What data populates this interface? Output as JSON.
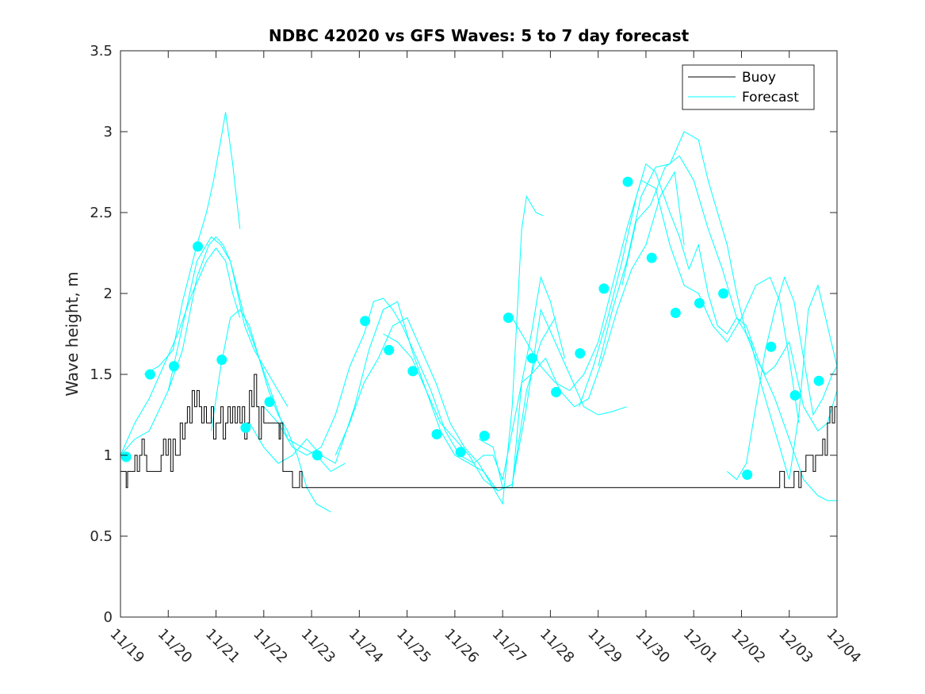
{
  "chart_data": {
    "type": "line",
    "title": "NDBC 42020 vs GFS Waves: 5 to 7 day forecast",
    "xlabel": "",
    "ylabel": "Wave height, m",
    "xlim": [
      0,
      15
    ],
    "ylim": [
      0,
      3.5
    ],
    "x_ticks": [
      0,
      1,
      2,
      3,
      4,
      5,
      6,
      7,
      8,
      9,
      10,
      11,
      12,
      13,
      14,
      15
    ],
    "x_tick_labels": [
      "11/19",
      "11/20",
      "11/21",
      "11/22",
      "11/23",
      "11/24",
      "11/25",
      "11/26",
      "11/27",
      "11/28",
      "11/29",
      "11/30",
      "12/01",
      "12/02",
      "12/03",
      "12/04"
    ],
    "y_ticks": [
      0,
      0.5,
      1,
      1.5,
      2,
      2.5,
      3,
      3.5
    ],
    "y_tick_labels": [
      "0",
      "0.5",
      "1",
      "1.5",
      "2",
      "2.5",
      "3",
      "3.5"
    ],
    "legend": {
      "position": "top-right",
      "entries": [
        {
          "label": "Buoy",
          "color": "#000000"
        },
        {
          "label": "Forecast",
          "color": "#00ffff"
        }
      ]
    },
    "colors": {
      "buoy": "#000000",
      "forecast": "#00ffff"
    },
    "series": [
      {
        "name": "Buoy",
        "x": [
          0,
          0.08,
          0.12,
          0.15,
          0.2,
          0.3,
          0.35,
          0.4,
          0.42,
          0.45,
          0.5,
          0.55,
          0.6,
          0.8,
          0.85,
          0.9,
          0.95,
          1.0,
          1.05,
          1.1,
          1.15,
          1.25,
          1.3,
          1.35,
          1.4,
          1.45,
          1.5,
          1.55,
          1.6,
          1.65,
          1.7,
          1.75,
          1.8,
          1.85,
          1.9,
          1.95,
          2.0,
          2.05,
          2.1,
          2.15,
          2.2,
          2.25,
          2.3,
          2.35,
          2.4,
          2.45,
          2.5,
          2.55,
          2.6,
          2.65,
          2.7,
          2.75,
          2.8,
          2.85,
          2.9,
          2.95,
          3.0,
          3.1,
          3.2,
          3.3,
          3.32,
          3.35,
          3.4,
          3.5,
          3.6,
          3.7,
          3.72,
          3.75,
          3.8,
          13.8,
          13.85,
          13.9,
          14.0,
          14.1,
          14.2,
          14.25,
          14.3,
          14.35,
          14.4,
          14.5,
          14.55,
          14.6,
          14.65,
          14.7,
          14.75,
          14.8,
          14.85,
          14.9,
          14.95,
          15.0
        ],
        "y": [
          0.9,
          0.9,
          0.8,
          0.9,
          0.9,
          1.0,
          0.9,
          1.0,
          1.0,
          1.1,
          1.0,
          0.9,
          0.9,
          0.9,
          1.0,
          1.1,
          1.0,
          1.1,
          0.9,
          1.1,
          1.0,
          1.2,
          1.1,
          1.2,
          1.3,
          1.2,
          1.4,
          1.3,
          1.4,
          1.3,
          1.2,
          1.3,
          1.2,
          1.2,
          1.3,
          1.1,
          1.2,
          1.2,
          1.3,
          1.1,
          1.2,
          1.3,
          1.2,
          1.3,
          1.2,
          1.3,
          1.2,
          1.3,
          1.1,
          1.2,
          1.4,
          1.3,
          1.5,
          1.3,
          1.1,
          1.3,
          1.2,
          1.2,
          1.2,
          1.2,
          1.1,
          1.2,
          0.9,
          0.9,
          0.8,
          0.8,
          0.8,
          0.9,
          0.8,
          0.9,
          0.9,
          0.8,
          0.8,
          0.9,
          0.8,
          0.9,
          0.9,
          1.0,
          1.0,
          0.9,
          1.0,
          1.0,
          1.0,
          1.1,
          1.0,
          1.2,
          1.3,
          1.2,
          1.3,
          1.2
        ]
      },
      {
        "name": "Forecast",
        "x": [
          0,
          0.3,
          0.6,
          1.0,
          1.3,
          1.6,
          1.85,
          2.0,
          2.15,
          2.3,
          2.45,
          2.6,
          2.8,
          3.0,
          3.3,
          3.5
        ],
        "y": [
          1.0,
          1.1,
          1.15,
          1.4,
          1.65,
          2.1,
          2.3,
          2.35,
          2.3,
          2.2,
          2.0,
          1.8,
          1.65,
          1.55,
          1.4,
          1.3
        ]
      },
      {
        "name": "Forecast",
        "x": [
          0,
          0.3,
          0.6,
          0.9,
          1.2,
          1.5,
          1.8,
          2.0,
          2.2,
          2.35,
          2.5
        ],
        "y": [
          1.0,
          1.2,
          1.35,
          1.55,
          1.75,
          2.0,
          2.2,
          2.28,
          2.2,
          2.0,
          1.85
        ]
      },
      {
        "name": "Forecast",
        "x": [
          0.5,
          0.8,
          1.1,
          1.3,
          1.6,
          1.8,
          1.95,
          2.1,
          2.2,
          2.35,
          2.5
        ],
        "y": [
          1.5,
          1.55,
          1.65,
          1.95,
          2.3,
          2.5,
          2.7,
          2.95,
          3.12,
          2.8,
          2.4
        ]
      },
      {
        "name": "Forecast",
        "x": [
          1.0,
          1.3,
          1.6,
          1.9,
          2.1,
          2.3,
          2.6,
          2.9,
          3.2,
          3.5,
          3.8,
          4.1,
          4.4,
          4.7
        ],
        "y": [
          1.4,
          1.8,
          2.2,
          2.35,
          2.3,
          2.2,
          1.85,
          1.6,
          1.35,
          1.1,
          1.05,
          1.0,
          0.9,
          0.95
        ]
      },
      {
        "name": "Forecast",
        "x": [
          1.9,
          2.1,
          2.3,
          2.5,
          2.7,
          2.9,
          3.1,
          3.3,
          3.5,
          3.7,
          3.9,
          4.1,
          4.4
        ],
        "y": [
          1.15,
          1.55,
          1.85,
          1.9,
          1.8,
          1.6,
          1.4,
          1.25,
          1.15,
          1.0,
          0.8,
          0.7,
          0.65
        ]
      },
      {
        "name": "Forecast",
        "x": [
          2.7,
          3.0,
          3.3,
          3.6,
          3.9,
          4.2,
          4.5,
          4.9,
          5.2,
          5.5,
          5.8,
          6.1,
          6.4,
          6.7,
          7.0,
          7.3,
          7.6,
          7.9,
          8.2,
          8.5,
          8.8,
          9.1
        ],
        "y": [
          1.2,
          1.05,
          0.95,
          1.0,
          1.1,
          1.0,
          0.95,
          1.3,
          1.65,
          1.9,
          1.95,
          1.65,
          1.4,
          1.15,
          1.0,
          0.95,
          0.9,
          0.78,
          0.82,
          1.4,
          1.7,
          1.85
        ]
      },
      {
        "name": "Forecast",
        "x": [
          3.0,
          3.3,
          3.6,
          3.9,
          4.2,
          4.5,
          4.8,
          5.1,
          5.3,
          5.5,
          5.7,
          5.9,
          6.2,
          6.5,
          6.8,
          7.1,
          7.4,
          7.6,
          7.8,
          8.0,
          8.2,
          8.4,
          8.6,
          8.8,
          9.0,
          9.3
        ],
        "y": [
          1.3,
          1.2,
          1.05,
          1.0,
          1.05,
          1.25,
          1.55,
          1.75,
          1.95,
          1.97,
          1.9,
          1.8,
          1.6,
          1.4,
          1.15,
          1.0,
          0.95,
          1.0,
          1.0,
          0.85,
          1.15,
          1.45,
          1.75,
          2.1,
          1.95,
          1.6
        ]
      },
      {
        "name": "Forecast",
        "x": [
          4.5,
          4.8,
          5.1,
          5.4,
          5.7,
          6.0,
          6.3,
          6.6,
          6.9,
          7.2,
          7.5,
          7.8,
          8.0,
          8.2,
          8.4,
          8.5,
          8.7,
          8.85
        ],
        "y": [
          1.0,
          1.2,
          1.45,
          1.6,
          1.8,
          1.85,
          1.65,
          1.45,
          1.2,
          1.05,
          0.95,
          0.8,
          0.7,
          1.3,
          2.4,
          2.6,
          2.5,
          2.48
        ]
      },
      {
        "name": "Forecast",
        "x": [
          5.5,
          5.8,
          6.1,
          6.4,
          6.7,
          7.0,
          7.3,
          7.6,
          7.9,
          8.2,
          8.5,
          8.8,
          9.1,
          9.4,
          9.7,
          10.0,
          10.3,
          10.6
        ],
        "y": [
          1.75,
          1.7,
          1.6,
          1.4,
          1.2,
          1.1,
          1.0,
          0.85,
          0.78,
          0.82,
          1.3,
          1.9,
          1.7,
          1.5,
          1.3,
          1.25,
          1.27,
          1.3
        ]
      },
      {
        "name": "Forecast",
        "x": [
          7.5,
          7.8,
          8.0,
          8.2,
          8.4,
          8.6,
          8.9,
          9.2,
          9.5,
          9.8,
          10.1,
          10.4,
          10.7,
          11.0,
          11.3,
          11.6,
          11.8
        ],
        "y": [
          1.1,
          1.05,
          0.8,
          0.8,
          1.45,
          1.5,
          1.6,
          1.4,
          1.3,
          1.35,
          1.6,
          1.9,
          2.15,
          2.3,
          2.6,
          2.75,
          2.3
        ]
      },
      {
        "name": "Forecast",
        "x": [
          8.2,
          8.5,
          8.8,
          9.1,
          9.4,
          9.7,
          10.0,
          10.3,
          10.6,
          10.9,
          11.2,
          11.5,
          11.8,
          12.1,
          12.4,
          12.7,
          13.0,
          13.3,
          13.6,
          13.8,
          14.0,
          14.2
        ],
        "y": [
          1.85,
          1.7,
          1.55,
          1.45,
          1.4,
          1.5,
          1.7,
          2.05,
          2.4,
          2.7,
          2.65,
          2.3,
          2.05,
          2.0,
          1.8,
          1.7,
          1.85,
          2.05,
          2.1,
          1.95,
          1.6,
          1.2
        ]
      },
      {
        "name": "Forecast",
        "x": [
          9.6,
          9.9,
          10.2,
          10.5,
          10.8,
          11.0,
          11.2,
          11.5,
          11.7,
          11.9,
          12.1,
          12.3,
          12.5,
          12.7,
          12.9,
          13.1,
          13.4,
          13.7,
          14.0,
          14.3,
          14.6,
          14.8,
          15.0
        ],
        "y": [
          1.3,
          1.55,
          1.85,
          2.2,
          2.6,
          2.8,
          2.75,
          2.5,
          2.35,
          2.15,
          2.3,
          2.0,
          1.8,
          1.75,
          1.85,
          1.8,
          1.55,
          1.35,
          1.1,
          0.85,
          0.75,
          0.72,
          0.72
        ]
      },
      {
        "name": "Forecast",
        "x": [
          10.0,
          10.3,
          10.6,
          10.9,
          11.2,
          11.5,
          11.8,
          12.1,
          12.3,
          12.5,
          12.7,
          12.9,
          13.1,
          13.3,
          13.5,
          13.7,
          14.0,
          14.3,
          14.6,
          14.8,
          15.0
        ],
        "y": [
          1.55,
          1.9,
          2.2,
          2.6,
          2.78,
          2.8,
          3.0,
          2.95,
          2.7,
          2.5,
          2.3,
          2.0,
          1.75,
          1.6,
          1.5,
          1.55,
          1.7,
          1.3,
          1.15,
          1.2,
          1.4
        ]
      },
      {
        "name": "Forecast",
        "x": [
          10.5,
          10.8,
          11.1,
          11.4,
          11.7,
          12.0,
          12.3,
          12.6,
          12.9,
          13.2,
          13.4,
          13.6,
          13.8,
          14.0,
          14.2,
          14.4,
          14.6,
          14.8,
          15.0
        ],
        "y": [
          2.05,
          2.45,
          2.55,
          2.78,
          2.85,
          2.7,
          2.4,
          2.15,
          1.85,
          1.7,
          1.45,
          1.25,
          1.05,
          0.85,
          1.25,
          1.9,
          2.05,
          1.8,
          1.55
        ]
      },
      {
        "name": "Forecast",
        "x": [
          12.7,
          12.9,
          13.1,
          13.3,
          13.5,
          13.7,
          13.9,
          14.1,
          14.3,
          14.5,
          14.7,
          14.9,
          15.0
        ],
        "y": [
          0.9,
          0.85,
          0.95,
          1.3,
          1.65,
          1.9,
          2.1,
          1.95,
          1.6,
          1.25,
          1.35,
          1.5,
          1.55
        ]
      }
    ],
    "markers": {
      "name": "Forecast points",
      "x": [
        0.12,
        0.62,
        1.12,
        1.62,
        2.12,
        2.62,
        3.12,
        4.12,
        5.12,
        5.62,
        6.12,
        6.62,
        7.12,
        7.62,
        8.12,
        8.62,
        9.12,
        9.62,
        10.12,
        10.62,
        11.12,
        11.62,
        12.12,
        12.62,
        13.12,
        13.62,
        14.12,
        14.62
      ],
      "y": [
        0.99,
        1.5,
        1.55,
        2.29,
        1.59,
        1.17,
        1.33,
        1.0,
        1.83,
        1.65,
        1.52,
        1.13,
        1.02,
        1.12,
        1.85,
        1.6,
        1.39,
        1.63,
        2.03,
        2.69,
        2.22,
        1.88,
        1.94,
        2.0,
        0.88,
        1.67,
        1.37,
        1.46
      ]
    }
  }
}
